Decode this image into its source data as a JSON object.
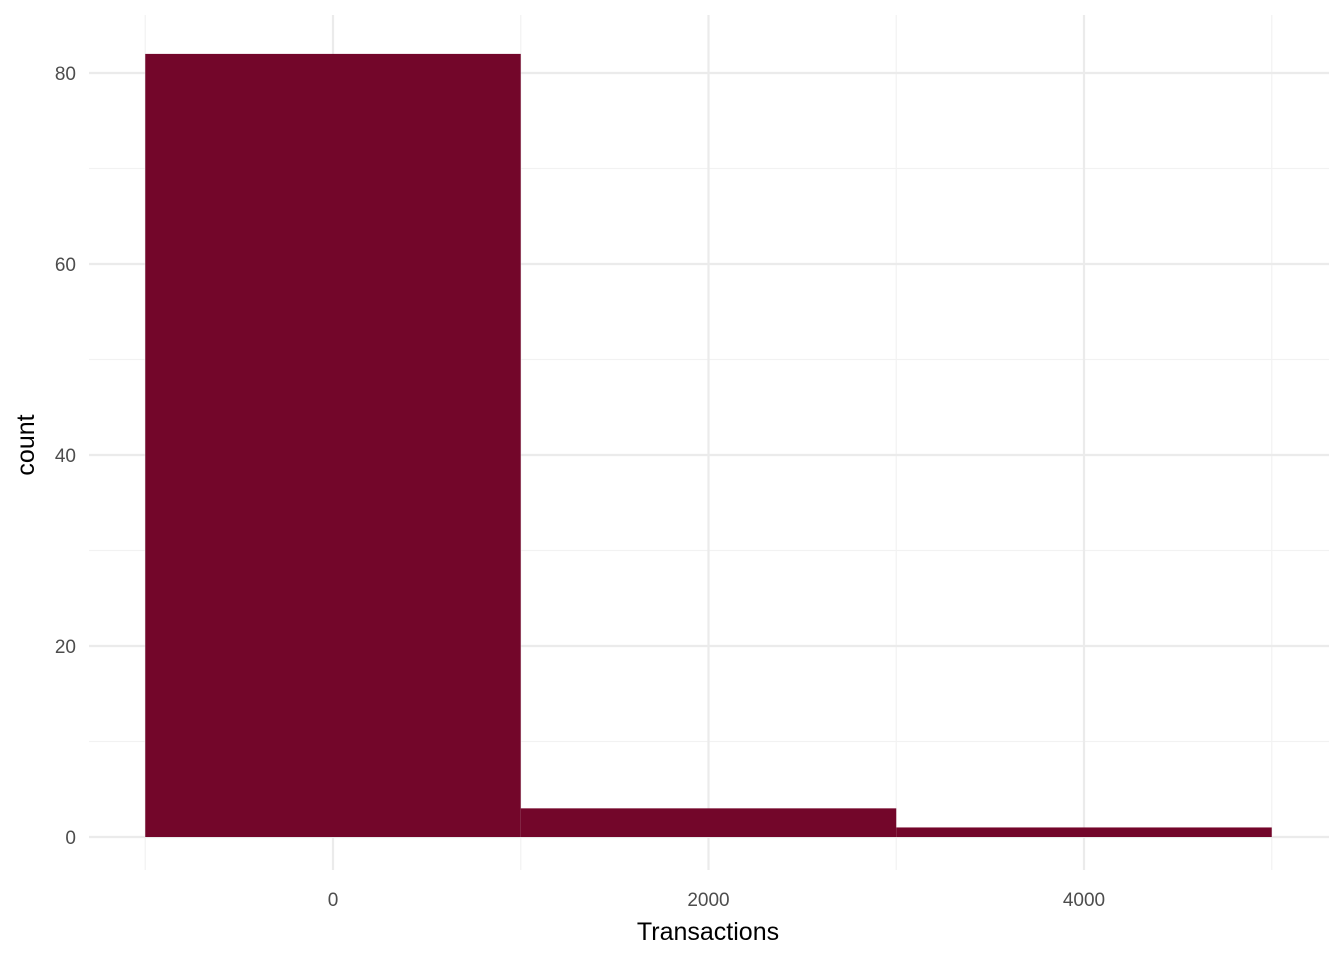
{
  "chart_data": {
    "type": "bar",
    "subtype": "histogram",
    "xlabel": "Transactions",
    "ylabel": "count",
    "xlim": [
      -1000,
      5000
    ],
    "ylim": [
      0,
      85
    ],
    "x_ticks": [
      0,
      2000,
      4000
    ],
    "x_tick_labels": [
      "0",
      "2000",
      "4000"
    ],
    "y_ticks": [
      0,
      20,
      40,
      60,
      80
    ],
    "y_tick_labels": [
      "0",
      "20",
      "40",
      "60",
      "80"
    ],
    "bins": [
      {
        "x_start": -1000,
        "x_end": 1000,
        "count": 82
      },
      {
        "x_start": 1000,
        "x_end": 3000,
        "count": 3
      },
      {
        "x_start": 3000,
        "x_end": 5000,
        "count": 1
      }
    ],
    "grid": true,
    "legend": "none",
    "colors": {
      "bar": "#73062a",
      "grid_major": "#ebebeb",
      "grid_minor": "#f2f2f2",
      "background": "#ffffff"
    }
  }
}
